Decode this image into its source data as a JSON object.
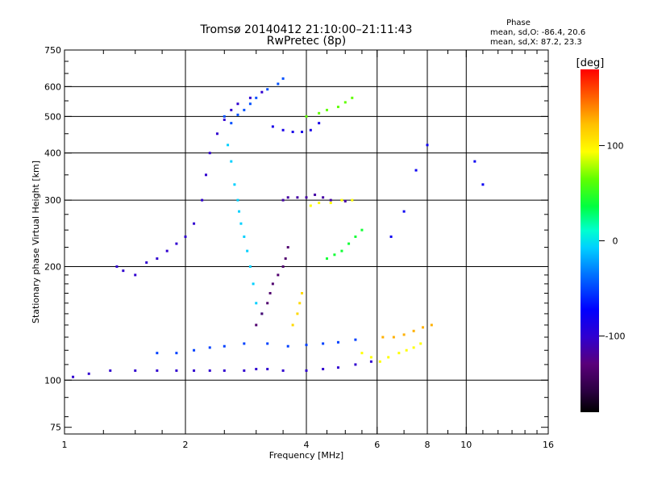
{
  "chart_data": {
    "type": "scatter",
    "title": "Tromsø 20140412 21:10:00–21:11:43",
    "subtitle": "RwPretec (8p)",
    "xlabel": "Frequency [MHz]",
    "ylabel": "Stationary phase Virtual Height [km]",
    "x_scale": "log2",
    "y_scale": "log",
    "xlim": [
      1,
      16
    ],
    "ylim": [
      72,
      750
    ],
    "x_ticks": [
      1,
      2,
      4,
      6,
      8,
      10,
      16
    ],
    "x_minor_ticks": [
      1.25,
      1.5,
      1.75,
      2.5,
      3,
      3.5,
      4.5,
      5,
      5.5,
      7,
      9,
      11,
      12,
      13,
      14,
      15
    ],
    "y_ticks": [
      75,
      100,
      200,
      300,
      400,
      500,
      600,
      750
    ],
    "grid": true,
    "x_gridlines": [
      2,
      4,
      6,
      8,
      10
    ],
    "y_gridlines": [
      100,
      200,
      300,
      400,
      500,
      600
    ],
    "stats": {
      "heading": "Phase",
      "line1": "mean, sd,O: -86.4, 20.6",
      "line2": "mean, sd,X:  87.2, 23.3"
    },
    "colorbar": {
      "unit_label": "[deg]",
      "range": [
        -180,
        180
      ],
      "ticks": [
        {
          "value": 100,
          "label": "100"
        },
        {
          "value": 0,
          "label": "0"
        },
        {
          "value": -100,
          "label": "-100"
        }
      ]
    },
    "series": [
      {
        "points": [
          [
            1.05,
            102
          ],
          [
            1.15,
            104
          ],
          [
            1.3,
            106
          ],
          [
            1.5,
            106
          ],
          [
            1.7,
            106
          ],
          [
            1.9,
            106
          ],
          [
            2.1,
            106
          ],
          [
            2.3,
            106
          ],
          [
            2.5,
            106
          ],
          [
            2.8,
            106
          ],
          [
            3.0,
            107
          ],
          [
            3.2,
            107
          ],
          [
            3.5,
            106
          ],
          [
            4.0,
            106
          ],
          [
            4.4,
            107
          ],
          [
            4.8,
            108
          ],
          [
            5.3,
            110
          ],
          [
            5.8,
            112
          ]
        ],
        "phase": -100
      },
      {
        "points": [
          [
            1.7,
            118
          ],
          [
            1.9,
            118
          ],
          [
            2.1,
            120
          ],
          [
            2.3,
            122
          ],
          [
            2.5,
            123
          ],
          [
            2.8,
            125
          ],
          [
            3.2,
            125
          ],
          [
            3.6,
            123
          ],
          [
            4.0,
            124
          ],
          [
            4.4,
            125
          ],
          [
            4.8,
            126
          ],
          [
            5.3,
            128
          ]
        ],
        "phase": -60
      },
      {
        "points": [
          [
            1.35,
            200
          ],
          [
            1.4,
            195
          ],
          [
            1.5,
            190
          ],
          [
            1.6,
            205
          ],
          [
            1.7,
            210
          ],
          [
            1.8,
            220
          ],
          [
            1.9,
            230
          ],
          [
            2.0,
            240
          ],
          [
            2.1,
            260
          ],
          [
            2.2,
            300
          ],
          [
            2.25,
            350
          ],
          [
            2.3,
            400
          ],
          [
            2.4,
            450
          ],
          [
            2.5,
            490
          ],
          [
            2.6,
            520
          ],
          [
            2.7,
            540
          ],
          [
            2.9,
            560
          ],
          [
            3.1,
            580
          ]
        ],
        "phase": -100
      },
      {
        "points": [
          [
            2.5,
            500
          ],
          [
            2.6,
            480
          ],
          [
            2.7,
            505
          ],
          [
            2.8,
            520
          ],
          [
            2.9,
            540
          ],
          [
            3.0,
            560
          ],
          [
            3.2,
            590
          ],
          [
            3.4,
            610
          ],
          [
            3.5,
            630
          ]
        ],
        "phase": -55
      },
      {
        "points": [
          [
            2.55,
            420
          ],
          [
            2.6,
            380
          ],
          [
            2.65,
            330
          ],
          [
            2.7,
            300
          ],
          [
            2.72,
            280
          ],
          [
            2.75,
            260
          ],
          [
            2.8,
            240
          ],
          [
            2.85,
            220
          ],
          [
            2.9,
            200
          ],
          [
            2.95,
            180
          ],
          [
            3.0,
            160
          ],
          [
            3.1,
            150
          ]
        ],
        "phase": -15
      },
      {
        "points": [
          [
            3.0,
            140
          ],
          [
            3.1,
            150
          ],
          [
            3.2,
            160
          ],
          [
            3.25,
            170
          ],
          [
            3.3,
            180
          ],
          [
            3.4,
            190
          ],
          [
            3.5,
            200
          ],
          [
            3.55,
            210
          ],
          [
            3.6,
            225
          ]
        ],
        "phase": -135
      },
      {
        "points": [
          [
            3.7,
            140
          ],
          [
            3.8,
            150
          ],
          [
            3.85,
            160
          ],
          [
            3.9,
            170
          ]
        ],
        "phase": 110
      },
      {
        "points": [
          [
            3.5,
            300
          ],
          [
            3.6,
            305
          ],
          [
            3.8,
            305
          ],
          [
            4.0,
            305
          ],
          [
            4.2,
            310
          ],
          [
            4.4,
            305
          ],
          [
            4.6,
            300
          ],
          [
            5.0,
            298
          ]
        ],
        "phase": -115
      },
      {
        "points": [
          [
            4.1,
            290
          ],
          [
            4.3,
            295
          ],
          [
            4.6,
            295
          ],
          [
            4.9,
            300
          ],
          [
            5.2,
            300
          ]
        ],
        "phase": 95
      },
      {
        "points": [
          [
            3.3,
            470
          ],
          [
            3.5,
            460
          ],
          [
            3.7,
            455
          ],
          [
            3.9,
            455
          ],
          [
            4.1,
            460
          ],
          [
            4.3,
            480
          ]
        ],
        "phase": -90
      },
      {
        "points": [
          [
            4.0,
            500
          ],
          [
            4.3,
            510
          ],
          [
            4.5,
            520
          ],
          [
            4.8,
            530
          ],
          [
            5.0,
            545
          ],
          [
            5.2,
            560
          ]
        ],
        "phase": 55
      },
      {
        "points": [
          [
            4.5,
            210
          ],
          [
            4.7,
            215
          ],
          [
            4.9,
            220
          ],
          [
            5.1,
            230
          ],
          [
            5.3,
            240
          ],
          [
            5.5,
            250
          ]
        ],
        "phase": 30
      },
      {
        "points": [
          [
            5.5,
            118
          ],
          [
            5.8,
            115
          ],
          [
            6.1,
            112
          ],
          [
            6.4,
            115
          ],
          [
            6.8,
            118
          ],
          [
            7.1,
            120
          ],
          [
            7.4,
            122
          ],
          [
            7.7,
            125
          ]
        ],
        "phase": 95
      },
      {
        "points": [
          [
            6.2,
            130
          ],
          [
            6.6,
            130
          ],
          [
            7.0,
            132
          ],
          [
            7.4,
            135
          ],
          [
            7.8,
            138
          ],
          [
            8.2,
            140
          ]
        ],
        "phase": 125
      },
      {
        "points": [
          [
            6.5,
            240
          ],
          [
            7.0,
            280
          ],
          [
            7.5,
            360
          ],
          [
            8.0,
            420
          ],
          [
            10.5,
            380
          ],
          [
            11.0,
            330
          ]
        ],
        "phase": -85
      }
    ]
  }
}
